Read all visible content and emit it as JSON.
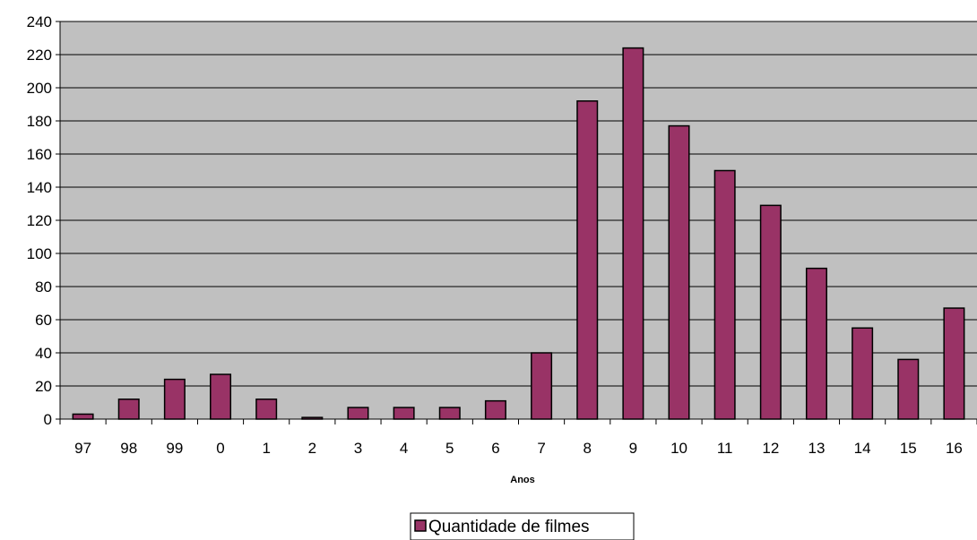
{
  "chart_data": {
    "type": "bar",
    "categories": [
      "97",
      "98",
      "99",
      "0",
      "1",
      "2",
      "3",
      "4",
      "5",
      "6",
      "7",
      "8",
      "9",
      "10",
      "11",
      "12",
      "13",
      "14",
      "15",
      "16"
    ],
    "series": [
      {
        "name": "Quantidade de filmes",
        "values": [
          3,
          12,
          24,
          27,
          12,
          1,
          7,
          7,
          7,
          11,
          40,
          192,
          224,
          177,
          150,
          129,
          91,
          55,
          36,
          67
        ]
      }
    ],
    "title": "",
    "xlabel": "Anos",
    "ylabel": "",
    "ylim": [
      0,
      240
    ],
    "yticks": [
      "0",
      "20",
      "40",
      "60",
      "80",
      "100",
      "120",
      "140",
      "160",
      "180",
      "200",
      "220",
      "240"
    ],
    "grid": true,
    "legend_position": "bottom",
    "colors": {
      "plot_background": "#c0c0c0",
      "bar_fill": "#993366",
      "bar_stroke": "#000000",
      "gridline": "#000000"
    }
  }
}
